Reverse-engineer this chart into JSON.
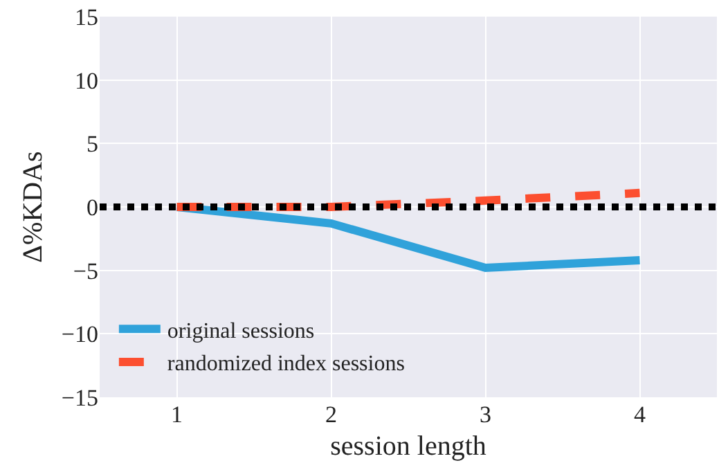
{
  "chart_data": {
    "type": "line",
    "xlabel": "session length",
    "ylabel": "Δ%KDAs",
    "x": [
      1,
      2,
      3,
      4
    ],
    "series": [
      {
        "name": "original sessions",
        "color": "#30a2da",
        "values": [
          0,
          -1.3,
          -4.8,
          -4.2
        ],
        "line_style": "solid"
      },
      {
        "name": "randomized index sessions",
        "color": "#fc4f30",
        "values": [
          0,
          0,
          0.5,
          1.1
        ],
        "line_style": "dashed"
      }
    ],
    "xlim": [
      0.5,
      4.5
    ],
    "xticks": [
      1,
      2,
      3,
      4
    ],
    "ylim": [
      -15,
      15
    ],
    "yticks": [
      -15,
      -10,
      -5,
      0,
      5,
      10,
      15
    ],
    "ref_lines": [
      {
        "axis": "y",
        "value": 0,
        "color": "#000000",
        "line_style": "dotted"
      }
    ],
    "grid": true,
    "legend": "bottom left",
    "marker": "none"
  }
}
